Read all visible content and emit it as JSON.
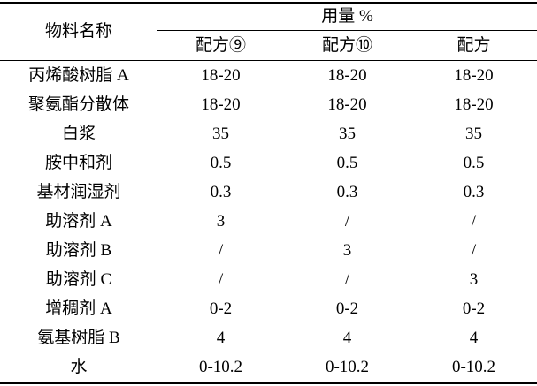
{
  "header": {
    "material_name": "物料名称",
    "usage": "用量 %",
    "formulas": [
      "配方⑨",
      "配方⑩",
      "配方"
    ]
  },
  "rows": [
    {
      "name": "丙烯酸树脂 A",
      "values": [
        "18-20",
        "18-20",
        "18-20"
      ]
    },
    {
      "name": "聚氨酯分散体",
      "values": [
        "18-20",
        "18-20",
        "18-20"
      ]
    },
    {
      "name": "白浆",
      "values": [
        "35",
        "35",
        "35"
      ]
    },
    {
      "name": "胺中和剂",
      "values": [
        "0.5",
        "0.5",
        "0.5"
      ]
    },
    {
      "name": "基材润湿剂",
      "values": [
        "0.3",
        "0.3",
        "0.3"
      ]
    },
    {
      "name": "助溶剂 A",
      "values": [
        "3",
        "/",
        "/"
      ]
    },
    {
      "name": "助溶剂 B",
      "values": [
        "/",
        "3",
        "/"
      ]
    },
    {
      "name": "助溶剂 C",
      "values": [
        "/",
        "/",
        "3"
      ]
    },
    {
      "name": "增稠剂 A",
      "values": [
        "0-2",
        "0-2",
        "0-2"
      ]
    },
    {
      "name": "氨基树脂 B",
      "values": [
        "4",
        "4",
        "4"
      ]
    },
    {
      "name": "水",
      "values": [
        "0-10.2",
        "0-10.2",
        "0-10.2"
      ]
    }
  ]
}
